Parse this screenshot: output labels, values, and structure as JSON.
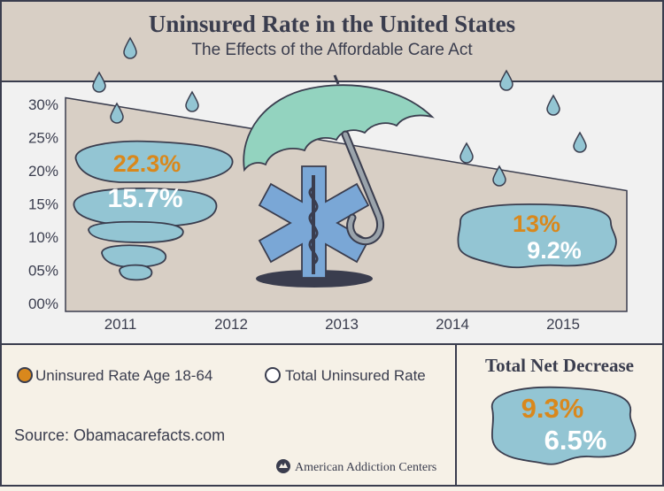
{
  "header": {
    "title": "Uninsured Rate in the United States",
    "subtitle": "The Effects of the Affordable Care Act"
  },
  "chart_data": {
    "type": "area",
    "title": "Uninsured Rate in the United States",
    "subtitle": "The Effects of the Affordable Care Act",
    "x": [
      "2011",
      "2012",
      "2013",
      "2014",
      "2015"
    ],
    "y_ticks": [
      "00%",
      "05%",
      "10%",
      "15%",
      "20%",
      "25%",
      "30%"
    ],
    "ylim": [
      0,
      30
    ],
    "trend": {
      "start": 31,
      "end": 17
    },
    "grid": false,
    "legend_position": "bottom-left",
    "series": [
      {
        "name": "Uninsured Rate Age 18-64",
        "color": "#d9881c",
        "values": {
          "2011": "22.3%",
          "2015": "13%"
        }
      },
      {
        "name": "Total Uninsured Rate",
        "color": "#ffffff",
        "values": {
          "2011": "15.7%",
          "2015": "9.2%"
        }
      }
    ],
    "annotations": {
      "callout_2011": {
        "age_18_64": "22.3%",
        "total": "15.7%"
      },
      "callout_2015": {
        "age_18_64": "13%",
        "total": "9.2%"
      }
    }
  },
  "net_decrease": {
    "title": "Total Net Decrease",
    "age_18_64": "9.3%",
    "total": "6.5%"
  },
  "legend": [
    {
      "label": "Uninsured Rate Age 18-64",
      "color": "#d9881c"
    },
    {
      "label": "Total Uninsured Rate",
      "color": "#ffffff"
    }
  ],
  "source": "Source: Obamacarefacts.com",
  "brand": "American Addiction Centers",
  "colors": {
    "header_bg": "#d8cfc5",
    "chart_bg": "#f1f1f1",
    "area": "#d8cfc5",
    "cloud": "#93c5d3",
    "umbrella": "#93d3bf",
    "orange": "#d9881c",
    "outline": "#3a3d4e"
  }
}
